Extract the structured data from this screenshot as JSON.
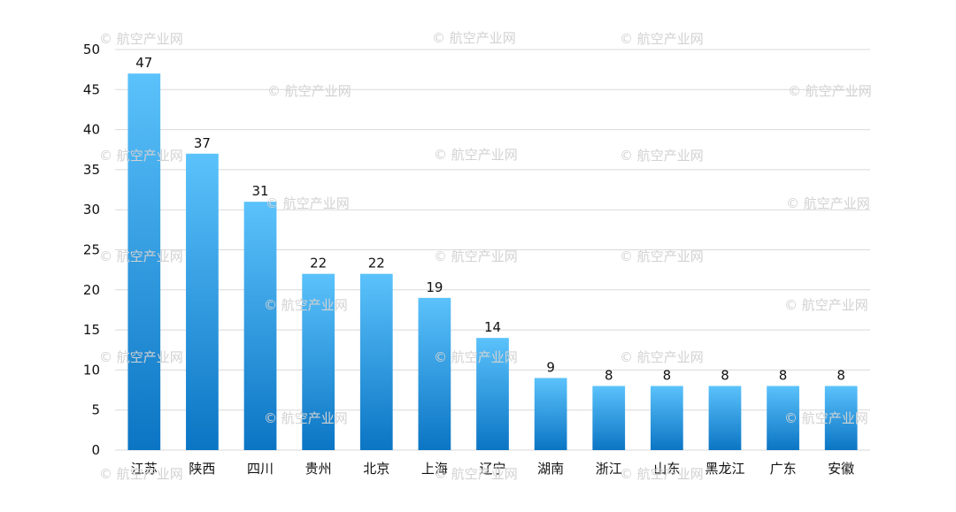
{
  "chart_data": {
    "type": "bar",
    "categories": [
      "江苏",
      "陕西",
      "四川",
      "贵州",
      "北京",
      "上海",
      "辽宁",
      "湖南",
      "浙江",
      "山东",
      "黑龙江",
      "广东",
      "安徽"
    ],
    "values": [
      47,
      37,
      31,
      22,
      22,
      19,
      14,
      9,
      8,
      8,
      8,
      8,
      8
    ],
    "data_labels": [
      "47",
      "37",
      "31",
      "22",
      "22",
      "19",
      "14",
      "9",
      "8",
      "8",
      "8",
      "8",
      "8"
    ],
    "title": "",
    "xlabel": "",
    "ylabel": "",
    "ylim": [
      0,
      50
    ],
    "yticks": [
      0,
      5,
      10,
      15,
      20,
      25,
      30,
      35,
      40,
      45,
      50
    ],
    "ytick_labels": [
      "0",
      "5",
      "10",
      "15",
      "20",
      "25",
      "30",
      "35",
      "40",
      "45",
      "50"
    ],
    "grid": true,
    "legend": "none",
    "colors": {
      "bar_top": "#5bc2fb",
      "bar_bottom": "#0b75c4",
      "grid": "#d9d9d9",
      "text": "#111111",
      "watermark": "#d2d2d2"
    }
  },
  "watermark": {
    "text": "© 航空产业网"
  }
}
